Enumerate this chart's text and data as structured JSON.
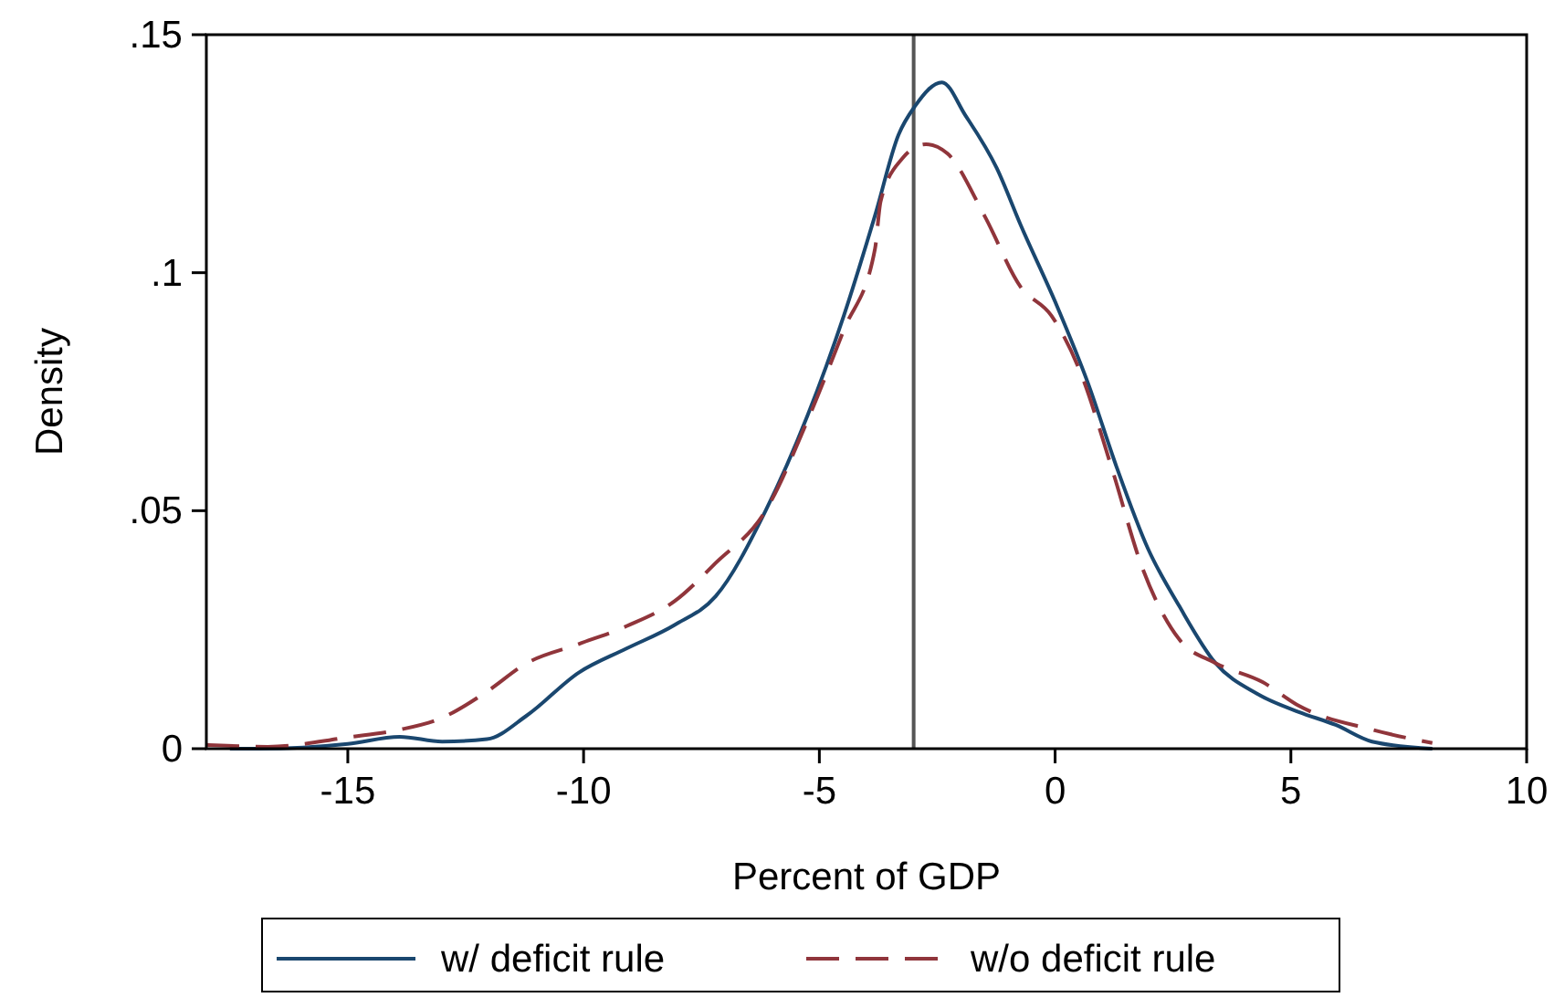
{
  "chart_data": {
    "type": "line",
    "xlabel": "Percent of GDP",
    "ylabel": "Density",
    "xlim": [
      -18,
      10
    ],
    "xticks": [
      -15,
      -10,
      -5,
      0,
      5,
      10
    ],
    "ylim": [
      0,
      0.15
    ],
    "yticks": [
      {
        "value": 0,
        "label": "0"
      },
      {
        "value": 0.05,
        "label": ".05"
      },
      {
        "value": 0.1,
        "label": ".1"
      },
      {
        "value": 0.15,
        "label": ".15"
      }
    ],
    "grid": false,
    "legend": "bottom",
    "marker": "none",
    "ref_lines": [
      {
        "axis": "x",
        "value": -3,
        "color": "#555555"
      }
    ],
    "series": [
      {
        "name": "w/ deficit rule",
        "color": "#1a476f",
        "line_style": "solid",
        "x": [
          -17.5,
          -16.9,
          -15,
          -13.9,
          -13,
          -12.05,
          -11.2,
          -10.1,
          -9.1,
          -8.07,
          -7.2,
          -6.14,
          -5.25,
          -4.48,
          -3.82,
          -3.32,
          -2.97,
          -2.4,
          -1.9,
          -1.24,
          -0.73,
          0.04,
          0.69,
          1.31,
          1.97,
          2.63,
          3.4,
          4.29,
          5.17,
          5.95,
          6.72,
          8
        ],
        "values": [
          0,
          0,
          0.001,
          0.0025,
          0.0015,
          0.002,
          0.007,
          0.016,
          0.021,
          0.026,
          0.032,
          0.05,
          0.07,
          0.091,
          0.112,
          0.129,
          0.135,
          0.14,
          0.133,
          0.122,
          0.11,
          0.093,
          0.077,
          0.059,
          0.042,
          0.03,
          0.018,
          0.0115,
          0.0077,
          0.005,
          0.0015,
          0
        ]
      },
      {
        "name": "w/o deficit rule",
        "color": "#90353b",
        "line_style": "dashed",
        "x": [
          -18,
          -16.7,
          -15,
          -13.9,
          -13,
          -12.05,
          -11.2,
          -10.1,
          -9.1,
          -8.07,
          -7.2,
          -6.14,
          -5.25,
          -4.48,
          -3.82,
          -3.7,
          -3.24,
          -2.74,
          -2.28,
          -1.5,
          -0.73,
          -0.08,
          0.54,
          1.2,
          1.85,
          2.63,
          3.4,
          4.4,
          5.17,
          6.72,
          8
        ],
        "values": [
          0.0008,
          0.0004,
          0.0024,
          0.004,
          0.0065,
          0.012,
          0.018,
          0.022,
          0.0257,
          0.031,
          0.039,
          0.05,
          0.069,
          0.088,
          0.105,
          0.115,
          0.124,
          0.127,
          0.125,
          0.112,
          0.097,
          0.091,
          0.079,
          0.059,
          0.038,
          0.023,
          0.018,
          0.014,
          0.009,
          0.004,
          0.0012
        ]
      }
    ]
  }
}
